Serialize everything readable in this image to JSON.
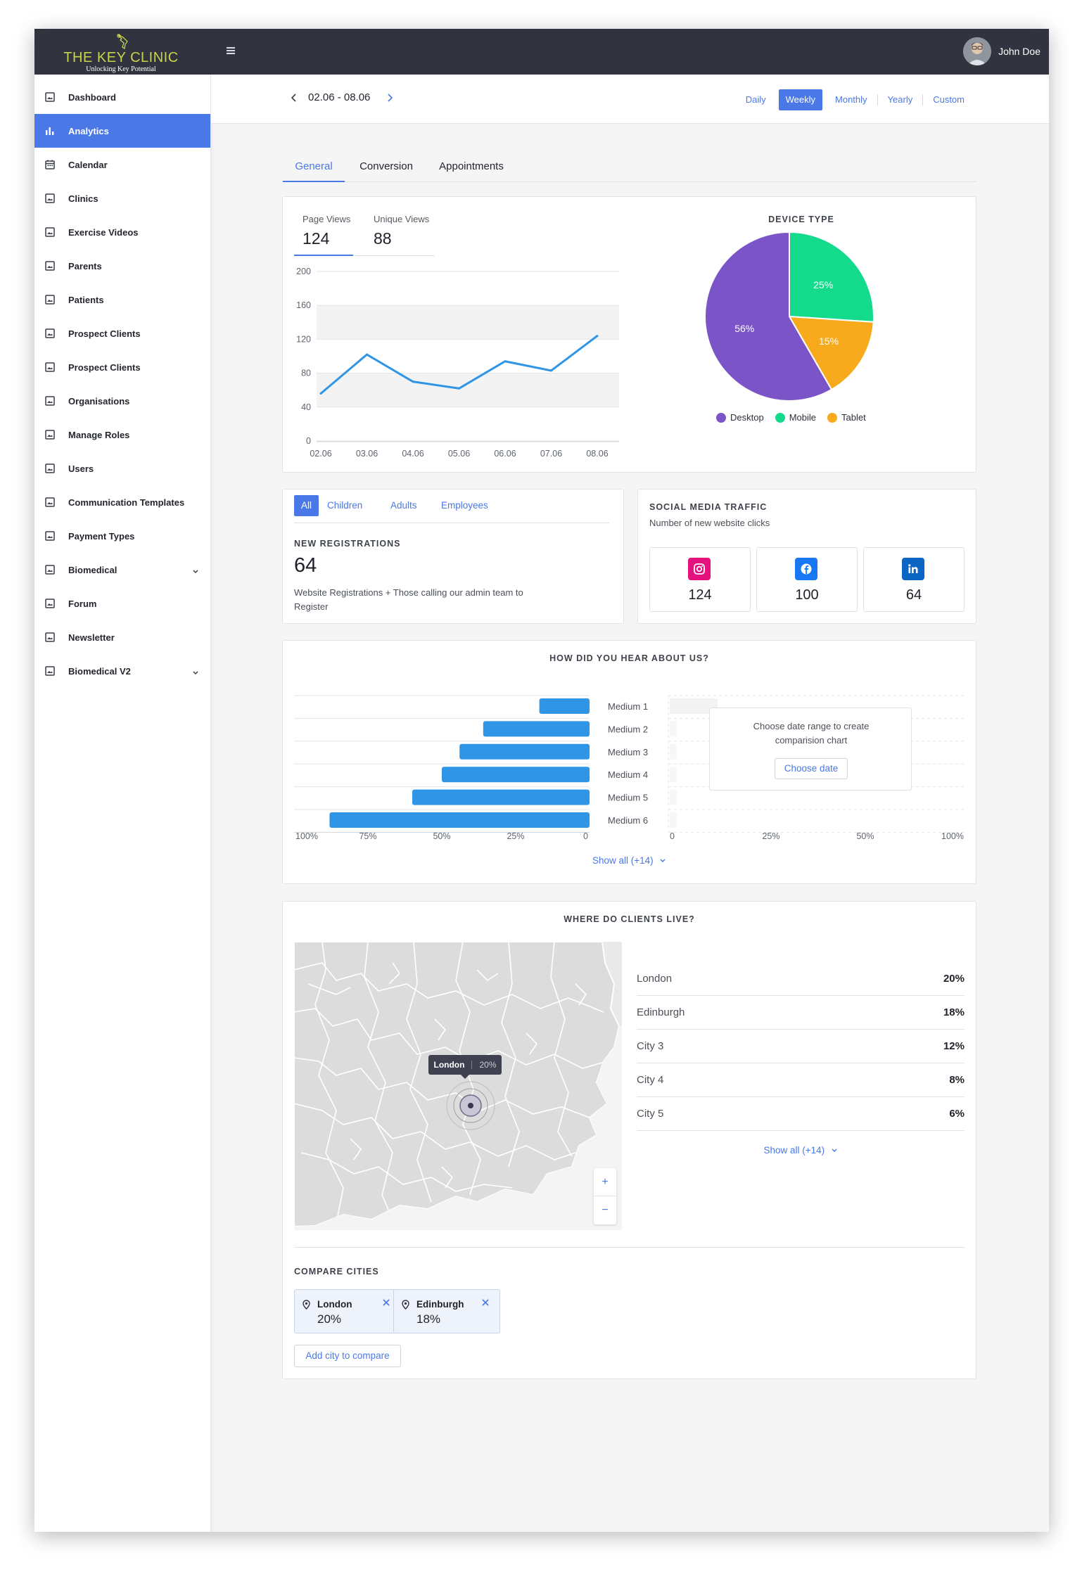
{
  "app": {
    "brand_name": "THE KEY CLINIC",
    "brand_tagline": "Unlocking Key Potential",
    "user_name": "John Doe"
  },
  "sidebar": {
    "items": [
      {
        "label": "Dashboard",
        "icon": "image-icon"
      },
      {
        "label": "Analytics",
        "icon": "bar-chart-icon",
        "active": true
      },
      {
        "label": "Calendar",
        "icon": "calendar-icon"
      },
      {
        "label": "Clinics",
        "icon": "image-icon"
      },
      {
        "label": "Exercise Videos",
        "icon": "image-icon"
      },
      {
        "label": "Parents",
        "icon": "image-icon"
      },
      {
        "label": "Patients",
        "icon": "image-icon"
      },
      {
        "label": "Prospect Clients",
        "icon": "image-icon"
      },
      {
        "label": "Prospect Clients",
        "icon": "image-icon"
      },
      {
        "label": "Organisations",
        "icon": "image-icon"
      },
      {
        "label": "Manage Roles",
        "icon": "image-icon"
      },
      {
        "label": "Users",
        "icon": "image-icon"
      },
      {
        "label": "Communication Templates",
        "icon": "image-icon"
      },
      {
        "label": "Payment Types",
        "icon": "image-icon"
      },
      {
        "label": "Biomedical",
        "icon": "image-icon",
        "expandable": true
      },
      {
        "label": "Forum",
        "icon": "image-icon"
      },
      {
        "label": "Newsletter",
        "icon": "image-icon"
      },
      {
        "label": "Biomedical V2",
        "icon": "image-icon",
        "expandable": true
      }
    ]
  },
  "header": {
    "date_range": "02.06 - 08.06",
    "periods": [
      "Daily",
      "Weekly",
      "Monthly",
      "Yearly",
      "Custom"
    ],
    "active_period": "Weekly"
  },
  "tabs": [
    "General",
    "Conversion",
    "Appointments"
  ],
  "views": {
    "page_views_label": "Page Views",
    "page_views_value": "124",
    "unique_views_label": "Unique Views",
    "unique_views_value": "88"
  },
  "device": {
    "title": "DEVICE TYPE"
  },
  "registrations": {
    "filters": [
      "All",
      "Children",
      "Adults",
      "Employees"
    ],
    "title": "NEW REGISTRATIONS",
    "value": "64",
    "description": "Website Registrations + Those calling our admin team to Register"
  },
  "social": {
    "title": "SOCIAL MEDIA TRAFFIC",
    "subtitle": "Number of new website clicks",
    "items": [
      {
        "network": "instagram",
        "icon": "instagram-icon",
        "value": "124",
        "color": "#e4117f"
      },
      {
        "network": "facebook",
        "icon": "facebook-icon",
        "value": "100",
        "color": "#1877f2"
      },
      {
        "network": "linkedin",
        "icon": "linkedin-icon",
        "value": "64",
        "color": "#0a66c2"
      }
    ]
  },
  "hear": {
    "title": "HOW DID YOU HEAR ABOUT US?",
    "compare_prompt": "Choose date range to create comparision chart",
    "choose_date": "Choose date",
    "show_all": "Show all (+14)"
  },
  "clients": {
    "title": "WHERE DO CLIENTS LIVE?",
    "tooltip_city": "London",
    "tooltip_pct": "20%",
    "zoom_in": "+",
    "zoom_out": "−",
    "cities": [
      {
        "name": "London",
        "pct": "20%"
      },
      {
        "name": "Edinburgh",
        "pct": "18%"
      },
      {
        "name": "City 3",
        "pct": "12%"
      },
      {
        "name": "City 4",
        "pct": "8%"
      },
      {
        "name": "City 5",
        "pct": "6%"
      }
    ],
    "show_all": "Show all (+14)",
    "compare_title": "COMPARE CITIES",
    "compare": [
      {
        "name": "London",
        "pct": "20%"
      },
      {
        "name": "Edinburgh",
        "pct": "18%"
      }
    ],
    "add_city": "Add city to compare"
  },
  "chart_data": [
    {
      "type": "line",
      "x": [
        "02.06",
        "03.06",
        "04.06",
        "05.06",
        "06.06",
        "07.06",
        "08.06"
      ],
      "series": [
        {
          "name": "Page Views",
          "values": [
            56,
            102,
            70,
            62,
            94,
            83,
            124
          ]
        }
      ],
      "yticks": [
        0,
        40,
        80,
        120,
        160,
        200
      ],
      "ylim": [
        0,
        200
      ],
      "color": "#2f95e6"
    },
    {
      "type": "pie",
      "labels": [
        "Desktop",
        "Mobile",
        "Tablet"
      ],
      "values": [
        56,
        25,
        15
      ],
      "value_labels": [
        "56%",
        "25%",
        "15%"
      ],
      "colors": [
        "#7b55c7",
        "#14db8c",
        "#f6aa1c"
      ],
      "legend": "bottom"
    },
    {
      "type": "bar",
      "orientation": "horizontal",
      "direction": "right-to-left",
      "categories": [
        "Medium 1",
        "Medium 2",
        "Medium 3",
        "Medium 4",
        "Medium 5",
        "Medium 6"
      ],
      "values": [
        17,
        36,
        44,
        50,
        60,
        88
      ],
      "xticks": [
        "100%",
        "75%",
        "50%",
        "25%",
        "0"
      ],
      "xlim": [
        0,
        100
      ],
      "color": "#2f95e6"
    },
    {
      "type": "bar",
      "orientation": "horizontal",
      "categories": [],
      "values": [],
      "xticks": [
        "0",
        "25%",
        "50%",
        "100%"
      ]
    }
  ]
}
